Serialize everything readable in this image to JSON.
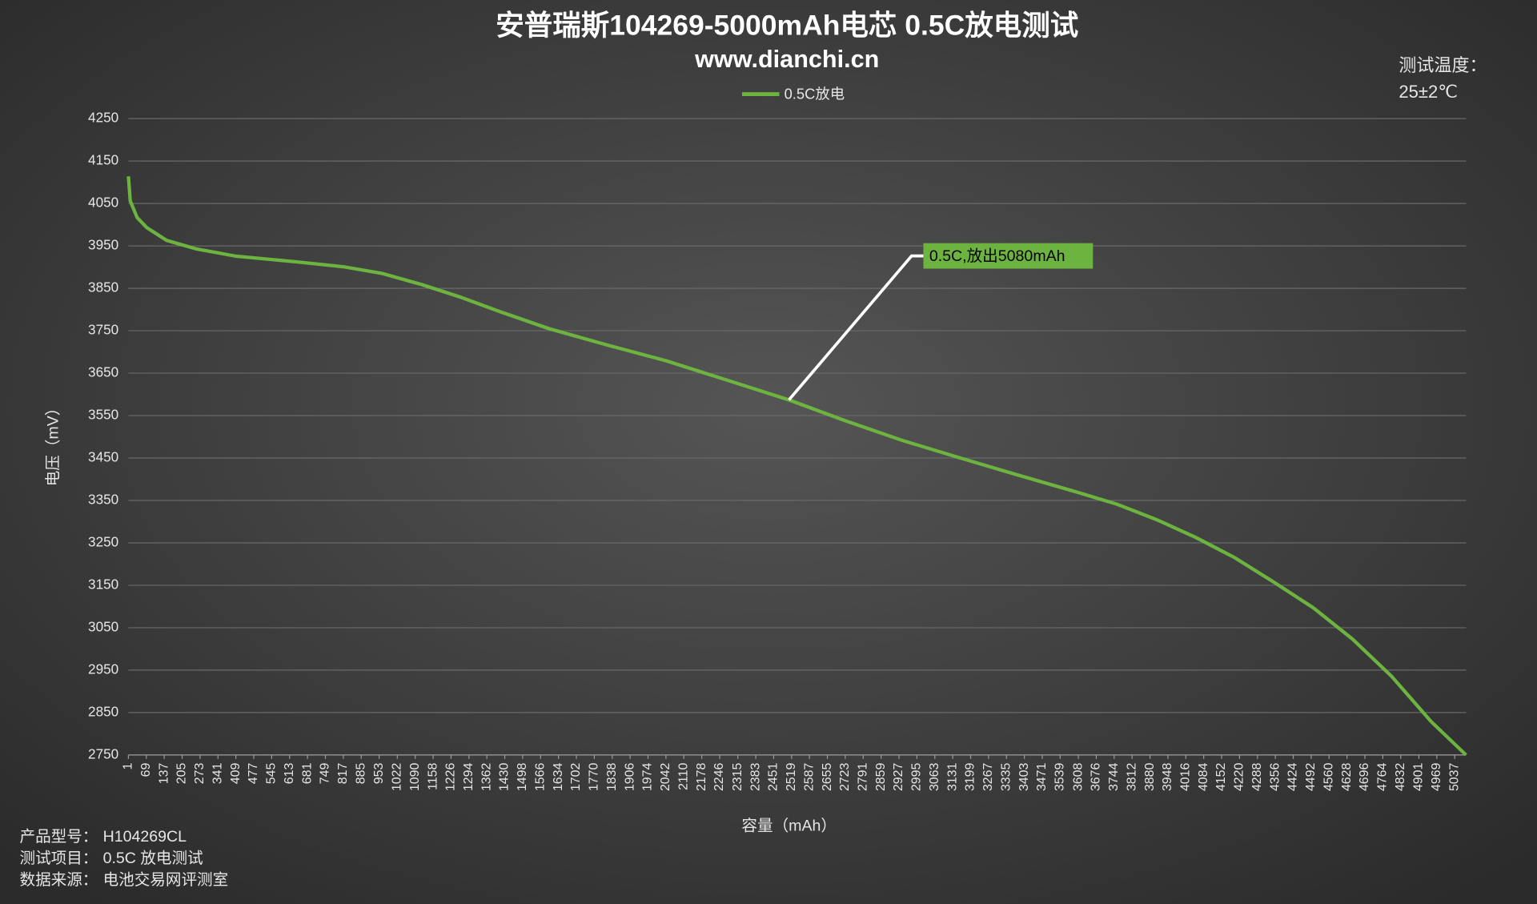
{
  "chart_data": {
    "type": "line",
    "title": "安普瑞斯104269-5000mAh电芯 0.5C放电测试",
    "subtitle": "www.dianchi.cn",
    "x_label": "容量（mAh）",
    "y_label": "电压（mV）",
    "legend_position": "top",
    "grid": true,
    "x": [
      1,
      8,
      34,
      71,
      146,
      258,
      407,
      630,
      816,
      965,
      1114,
      1263,
      1412,
      1598,
      1821,
      2044,
      2267,
      2509,
      2714,
      2937,
      3160,
      3383,
      3606,
      3755,
      3904,
      4053,
      4202,
      4351,
      4500,
      4649,
      4798,
      4947,
      5080
    ],
    "series": [
      {
        "name": "0.5C放电",
        "color": "#6db33f",
        "values": [
          4114,
          4056,
          4017,
          3993,
          3963,
          3943,
          3926,
          3913,
          3901,
          3885,
          3859,
          3829,
          3795,
          3755,
          3716,
          3679,
          3635,
          3587,
          3540,
          3492,
          3450,
          3409,
          3369,
          3341,
          3305,
          3263,
          3215,
          3157,
          3097,
          3023,
          2935,
          2829,
          2750
        ]
      }
    ],
    "xlim": [
      1,
      5080
    ],
    "xticks": [
      1,
      69,
      137,
      205,
      273,
      341,
      409,
      477,
      545,
      613,
      681,
      749,
      817,
      885,
      953,
      1022,
      1090,
      1158,
      1226,
      1294,
      1362,
      1430,
      1498,
      1566,
      1634,
      1702,
      1770,
      1838,
      1906,
      1974,
      2042,
      2110,
      2178,
      2246,
      2315,
      2383,
      2451,
      2519,
      2587,
      2655,
      2723,
      2791,
      2859,
      2927,
      2995,
      3063,
      3131,
      3199,
      3267,
      3335,
      3403,
      3471,
      3539,
      3608,
      3676,
      3744,
      3812,
      3880,
      3948,
      4016,
      4084,
      4152,
      4220,
      4288,
      4356,
      4424,
      4492,
      4560,
      4628,
      4696,
      4764,
      4832,
      4901,
      4969,
      5037
    ],
    "ylim": [
      2750,
      4250
    ],
    "yticks": [
      2750,
      2850,
      2950,
      3050,
      3150,
      3250,
      3350,
      3450,
      3550,
      3650,
      3750,
      3850,
      3950,
      4050,
      4150,
      4250
    ],
    "annotation": "0.5C,放出5080mAh",
    "temperature_label": "测试温度：",
    "temperature": "25±2℃",
    "info": [
      [
        "产品型号：",
        "H104269CL"
      ],
      [
        "测试项目：",
        "0.5C 放电测试"
      ],
      [
        "数据来源：",
        "电池交易网评测室"
      ]
    ]
  }
}
